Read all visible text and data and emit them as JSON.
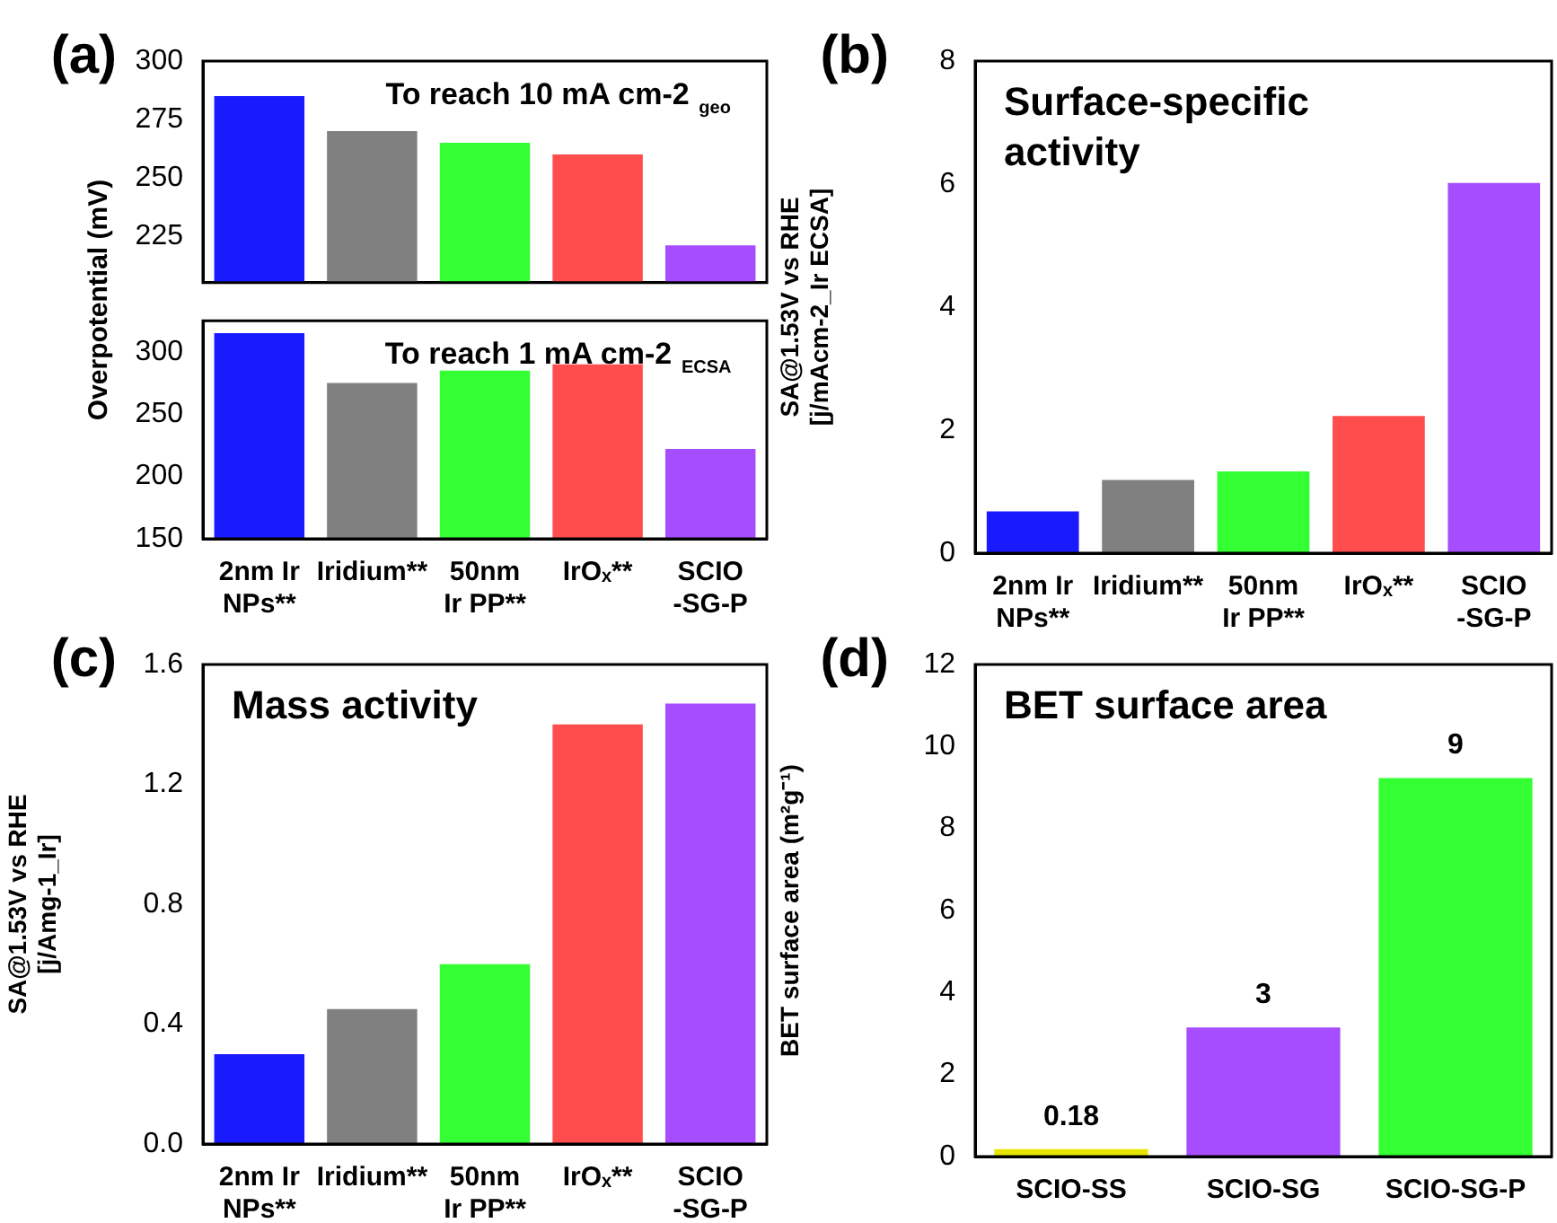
{
  "chart_data": [
    {
      "type": "bar",
      "title": "To reach 10 mA cm-2 $_{geo}$",
      "ylabel": "Overpotential (mV)",
      "annotations": [
        "(a)"
      ],
      "values": [
        285,
        270,
        265,
        260,
        221
      ],
      "colors": [
        "#1a1aff",
        "#808080",
        "#33ff33",
        "#ff4d4d",
        "#a64dff"
      ],
      "ylim": [
        205,
        300
      ],
      "yticks": [
        225,
        250,
        275,
        300
      ],
      "tick_labels": "y"
    },
    {
      "type": "bar",
      "title": "To reach 1 mA cm-2 $_{ECSA}$",
      "categories": [
        "2nm Ir\nNPs**",
        "Iridium**",
        "50nm\nIr PP**",
        "IrOₓ**",
        "SCIO\n-SG-P"
      ],
      "values": [
        315,
        275,
        285,
        290,
        222
      ],
      "colors": [
        "#1a1aff",
        "#808080",
        "#33ff33",
        "#ff4d4d",
        "#a64dff"
      ],
      "ylim": [
        150,
        325
      ],
      "yticks": [
        150,
        200,
        250,
        300
      ]
    },
    {
      "type": "bar",
      "title": "Surface-specific\nactivity",
      "ylabel": "SA@1.53V vs RHE\n[j/mAcm-2_Ir ECSA]",
      "annotations": [
        "(b)"
      ],
      "categories": [
        "2nm Ir\nNPs**",
        "Iridium**",
        "50nm\nIr PP**",
        "IrOₓ**",
        "SCIO\n-SG-P"
      ],
      "values": [
        0.68,
        1.19,
        1.33,
        2.23,
        6.02
      ],
      "colors": [
        "#1a1aff",
        "#808080",
        "#33ff33",
        "#ff4d4d",
        "#a64dff"
      ],
      "ylim": [
        0,
        8
      ],
      "yticks": [
        0,
        2,
        4,
        6,
        8
      ]
    },
    {
      "type": "bar",
      "title": "Mass activity",
      "ylabel": "SA@1.53V vs RHE\n[j/Amg-1_Ir]",
      "annotations": [
        "(c)"
      ],
      "categories": [
        "2nm Ir\nNPs**",
        "Iridium**",
        "50nm\nIr PP**",
        "IrOₓ**",
        "SCIO\n-SG-P"
      ],
      "values": [
        0.3,
        0.45,
        0.6,
        1.4,
        1.47
      ],
      "colors": [
        "#1a1aff",
        "#808080",
        "#33ff33",
        "#ff4d4d",
        "#a64dff"
      ],
      "ylim": [
        0,
        1.6
      ],
      "yticks": [
        {
          "value": 0,
          "label": "0.0"
        },
        0.4,
        0.8,
        1.2,
        1.6
      ]
    },
    {
      "type": "bar",
      "title": "BET surface area",
      "ylabel": "BET surface area (m²g⁻¹)",
      "annotations": [
        "(d)"
      ],
      "categories": [
        "SCIO-SS",
        "SCIO-SG",
        "SCIO-SG-P"
      ],
      "values": [
        0.18,
        3.15,
        9.23
      ],
      "value_labels": [
        "0.18",
        "3",
        "9"
      ],
      "colors": [
        "#e6e600",
        "#a64dff",
        "#33ff33"
      ],
      "ylim": [
        0,
        12
      ],
      "yticks": [
        0,
        2,
        4,
        6,
        8,
        10,
        12
      ]
    }
  ]
}
